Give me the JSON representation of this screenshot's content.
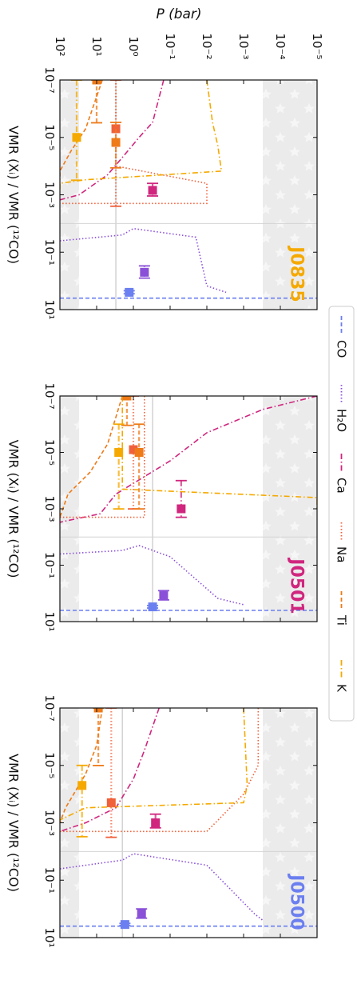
{
  "figure": {
    "shared_axis_label": "P (bar)",
    "shared_axis_ticks": [
      "10²",
      "10¹",
      "10⁰",
      "10⁻¹",
      "10⁻²",
      "10⁻³",
      "10⁻⁴",
      "10⁻⁵"
    ],
    "shared_axis_values": [
      100,
      10,
      1,
      0.1,
      0.01,
      0.001,
      0.0001,
      1e-05
    ],
    "vmr_axis_label": "VMR (Xᵢ) / VMR (¹²CO)",
    "vmr_tick_labels": [
      "10⁻⁷",
      "10⁻⁵",
      "10⁻³",
      "10⁻¹",
      "10¹"
    ],
    "vmr_tick_values": [
      1e-07,
      1e-05,
      0.001,
      0.1,
      10
    ]
  },
  "legend": {
    "entries": [
      {
        "key": "co",
        "label": "CO",
        "color": "#6b7ff0",
        "dash": "5,3"
      },
      {
        "key": "h2o",
        "label": "H₂O",
        "color": "#8a50d8",
        "dash": "1.5,2.5"
      },
      {
        "key": "ca",
        "label": "Ca",
        "color": "#d0267e",
        "dash": "7,3,1.5,3"
      },
      {
        "key": "na",
        "label": "Na",
        "color": "#f0603a",
        "dash": "1.5,2.5"
      },
      {
        "key": "ti",
        "label": "Ti",
        "color": "#ee7a18",
        "dash": "5,3"
      },
      {
        "key": "k",
        "label": "K",
        "color": "#f5a900",
        "dash": "7,3,1.5,3"
      }
    ]
  },
  "chart_data": [
    {
      "type": "line",
      "panel": "J0835",
      "title": "J0835",
      "title_color": "#f5a900",
      "xscale": "log",
      "yscale": "log",
      "xlim_vmr": [
        1e-07,
        10
      ],
      "ylim_pressure_bar": [
        100,
        1e-05
      ],
      "shaded_regions_pressure_bar": [
        [
          0.0003,
          1e-05
        ],
        [
          100,
          30
        ]
      ],
      "reference_line_pressure_bar": 3,
      "reference_line_vmr": 0.01,
      "profiles": [
        {
          "species": "CO",
          "vmr": [
            4,
            4
          ],
          "pressure": [
            100,
            1e-05
          ]
        },
        {
          "species": "H2O",
          "vmr": [
            0.04,
            0.025,
            0.015,
            0.03,
            1.5,
            2.5
          ],
          "pressure": [
            100,
            2,
            1,
            0.02,
            0.01,
            0.003
          ]
        },
        {
          "species": "Ca",
          "vmr": [
            1e-07,
            3e-06,
            1e-05,
            5e-05,
            0.0002,
            0.001,
            0.0015
          ],
          "pressure": [
            0.15,
            0.3,
            0.7,
            2,
            5,
            30,
            100
          ]
        },
        {
          "species": "Na",
          "vmr": [
            1e-07,
            1e-06,
            1e-05,
            0.0001,
            0.0004,
            0.002,
            0.002
          ],
          "pressure": [
            3,
            3,
            3,
            3,
            0.01,
            0.01,
            100
          ]
        },
        {
          "species": "Ti",
          "vmr": [
            1e-07,
            5e-06,
            3e-05,
            0.00015,
            0.0003
          ],
          "pressure": [
            7,
            20,
            50,
            100,
            100
          ]
        },
        {
          "species": "K",
          "vmr": [
            1e-07,
            3e-06,
            2e-05,
            0.00015,
            0.0003,
            0.0004,
            0.0008
          ],
          "pressure": [
            0.01,
            0.007,
            0.005,
            0.004,
            20,
            100,
            100
          ]
        }
      ],
      "retrieved_points": [
        {
          "species": "CO",
          "vmr": 2.5,
          "vmr_err": [
            0.3,
            0.3
          ],
          "pressure": 1.3
        },
        {
          "species": "H2O",
          "vmr": 0.5,
          "vmr_err": [
            0.2,
            0.3
          ],
          "pressure": 0.5
        },
        {
          "species": "Ca",
          "vmr": 0.0007,
          "vmr_err": [
            0.0003,
            0.0004
          ],
          "pressure": 0.3
        },
        {
          "species": "Na",
          "vmr": 5e-06,
          "vmr_err": [
            5e-06,
            0.0025
          ],
          "pressure": 3
        },
        {
          "species": "Ti",
          "vmr": 1.5e-05,
          "vmr_err": [
            1.2e-05,
            0.0001
          ],
          "pressure": 3
        },
        {
          "species": "Ti",
          "vmr": 1e-07,
          "vmr_err": [
            0,
            3e-06
          ],
          "pressure": 10
        },
        {
          "species": "K",
          "vmr": 1e-05,
          "vmr_err": [
            1e-05,
            0.0003
          ],
          "pressure": 35
        }
      ]
    },
    {
      "type": "line",
      "panel": "J0501",
      "title": "J0501",
      "title_color": "#d0267e",
      "xscale": "log",
      "yscale": "log",
      "xlim_vmr": [
        1e-07,
        10
      ],
      "ylim_pressure_bar": [
        100,
        1e-05
      ],
      "shaded_regions_pressure_bar": [
        [
          0.0003,
          1e-05
        ],
        [
          100,
          30
        ]
      ],
      "reference_line_pressure_bar": 0.3,
      "reference_line_vmr": 0.01,
      "profiles": [
        {
          "species": "CO",
          "vmr": [
            4,
            4
          ],
          "pressure": [
            100,
            1e-05
          ]
        },
        {
          "species": "H2O",
          "vmr": [
            0.04,
            0.03,
            0.02,
            0.05,
            1.5,
            2.5
          ],
          "pressure": [
            100,
            2,
            0.7,
            0.1,
            0.005,
            0.001
          ]
        },
        {
          "species": "Ca",
          "vmr": [
            1e-07,
            3e-07,
            2e-06,
            2e-05,
            0.0003,
            0.0015,
            0.003
          ],
          "pressure": [
            1e-05,
            0.0003,
            0.01,
            0.1,
            3,
            8,
            100
          ]
        },
        {
          "species": "Na",
          "vmr": [
            1e-07,
            1e-05,
            0.002,
            0.002
          ],
          "pressure": [
            0.5,
            0.5,
            0.5,
            100
          ]
        },
        {
          "species": "Ti",
          "vmr": [
            1e-07,
            5e-06,
            5e-05,
            0.0003,
            0.002
          ],
          "pressure": [
            2,
            5,
            15,
            60,
            100
          ]
        },
        {
          "species": "K",
          "vmr": [
            1e-07,
            5e-05,
            0.0002,
            0.0004,
            0.001
          ],
          "pressure": [
            2,
            2,
            2,
            1e-05,
            1e-05
          ]
        }
      ],
      "retrieved_points": [
        {
          "species": "CO",
          "vmr": 3,
          "vmr_err": [
            0.3,
            0.3
          ],
          "pressure": 0.3
        },
        {
          "species": "H2O",
          "vmr": 1.2,
          "vmr_err": [
            0.4,
            0.5
          ],
          "pressure": 0.15
        },
        {
          "species": "Ca",
          "vmr": 0.001,
          "vmr_err": [
            0.0009,
            0.001
          ],
          "pressure": 0.05
        },
        {
          "species": "Na",
          "vmr": 8e-06,
          "vmr_err": [
            8e-06,
            0.001
          ],
          "pressure": 1
        },
        {
          "species": "Ti",
          "vmr": 1e-05,
          "vmr_err": [
            9e-06,
            0.001
          ],
          "pressure": 0.7
        },
        {
          "species": "Ti",
          "vmr": 1e-07,
          "vmr_err": [
            0,
            1e-06
          ],
          "pressure": 1.5
        },
        {
          "species": "K",
          "vmr": 1e-05,
          "vmr_err": [
            9e-06,
            0.001
          ],
          "pressure": 2.5
        }
      ]
    },
    {
      "type": "line",
      "panel": "J0500",
      "title": "J0500",
      "title_color": "#6b7ff0",
      "xscale": "log",
      "yscale": "log",
      "xlim_vmr": [
        1e-07,
        10
      ],
      "ylim_pressure_bar": [
        100,
        1e-05
      ],
      "shaded_regions_pressure_bar": [
        [
          0.0003,
          1e-05
        ],
        [
          100,
          30
        ]
      ],
      "reference_line_pressure_bar": 2,
      "reference_line_vmr": 0.01,
      "profiles": [
        {
          "species": "CO",
          "vmr": [
            4,
            4
          ],
          "pressure": [
            100,
            1e-05
          ]
        },
        {
          "species": "H2O",
          "vmr": [
            0.04,
            0.02,
            0.012,
            0.03,
            1.5,
            2.5
          ],
          "pressure": [
            100,
            2,
            1,
            0.01,
            0.0005,
            0.0003
          ]
        },
        {
          "species": "Ca",
          "vmr": [
            1e-07,
            3e-06,
            3e-05,
            0.0003,
            0.001,
            0.002
          ],
          "pressure": [
            0.2,
            0.5,
            1,
            3,
            20,
            100
          ]
        },
        {
          "species": "Na",
          "vmr": [
            1e-07,
            1e-05,
            0.0001,
            0.002,
            0.002
          ],
          "pressure": [
            0.0004,
            0.0004,
            0.001,
            0.01,
            100
          ]
        },
        {
          "species": "Ti",
          "vmr": [
            1e-07,
            2e-06,
            2e-05,
            0.0003,
            0.001
          ],
          "pressure": [
            7,
            10,
            20,
            70,
            100
          ]
        },
        {
          "species": "K",
          "vmr": [
            1e-07,
            5e-05,
            0.0002,
            0.0003,
            0.0008
          ],
          "pressure": [
            0.001,
            0.0008,
            0.001,
            20,
            100
          ]
        }
      ],
      "retrieved_points": [
        {
          "species": "CO",
          "vmr": 3.5,
          "vmr_err": [
            0.3,
            0.3
          ],
          "pressure": 1.7
        },
        {
          "species": "H2O",
          "vmr": 1.5,
          "vmr_err": [
            0.5,
            0.6
          ],
          "pressure": 0.6
        },
        {
          "species": "Ca",
          "vmr": 0.001,
          "vmr_err": [
            0.0005,
            0.0005
          ],
          "pressure": 0.25
        },
        {
          "species": "Na",
          "vmr": 0.0002,
          "vmr_err": [
            0.0002,
            0.003
          ],
          "pressure": 4
        },
        {
          "species": "Ti",
          "vmr": 1e-07,
          "vmr_err": [
            0,
            1e-05
          ],
          "pressure": 9
        },
        {
          "species": "K",
          "vmr": 5e-05,
          "vmr_err": [
            4e-05,
            0.003
          ],
          "pressure": 25
        }
      ]
    }
  ]
}
